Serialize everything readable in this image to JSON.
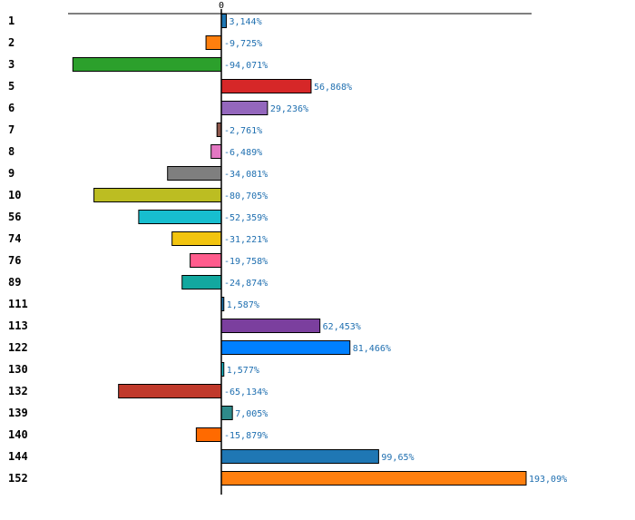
{
  "chart_data": {
    "type": "bar",
    "orientation": "horizontal",
    "title": "",
    "xlabel": "",
    "ylabel": "",
    "zero_tick": "0",
    "categories": [
      "1",
      "2",
      "3",
      "5",
      "6",
      "7",
      "8",
      "9",
      "10",
      "56",
      "74",
      "76",
      "89",
      "111",
      "113",
      "122",
      "130",
      "132",
      "139",
      "140",
      "144",
      "152"
    ],
    "values": [
      3.144,
      -9.725,
      -94.071,
      56.868,
      29.236,
      -2.761,
      -6.489,
      -34.081,
      -80.705,
      -52.359,
      -31.221,
      -19.758,
      -24.874,
      1.587,
      62.453,
      81.466,
      1.577,
      -65.134,
      7.005,
      -15.879,
      99.65,
      193.09
    ],
    "value_labels": [
      "3,144%",
      "-9,725%",
      "-94,071%",
      "56,868%",
      "29,236%",
      "-2,761%",
      "-6,489%",
      "-34,081%",
      "-80,705%",
      "-52,359%",
      "-31,221%",
      "-19,758%",
      "-24,874%",
      "1,587%",
      "62,453%",
      "81,466%",
      "1,577%",
      "-65,134%",
      "7,005%",
      "-15,879%",
      "99,65%",
      "193,09%"
    ],
    "colors": [
      "#1f77b4",
      "#ff7f0e",
      "#2ca02c",
      "#d62728",
      "#9467bd",
      "#8c564b",
      "#e377c2",
      "#7f7f7f",
      "#bcbd22",
      "#17becf",
      "#f2c40f",
      "#ff5c8d",
      "#12a89f",
      "#1f77b4",
      "#7b3f9e",
      "#0080ff",
      "#17becf",
      "#c0392b",
      "#2e8b8b",
      "#ff6a00",
      "#1f77b4",
      "#ff7f0e"
    ],
    "xlim": [
      -95,
      195
    ],
    "grid": false,
    "legend": "none"
  }
}
